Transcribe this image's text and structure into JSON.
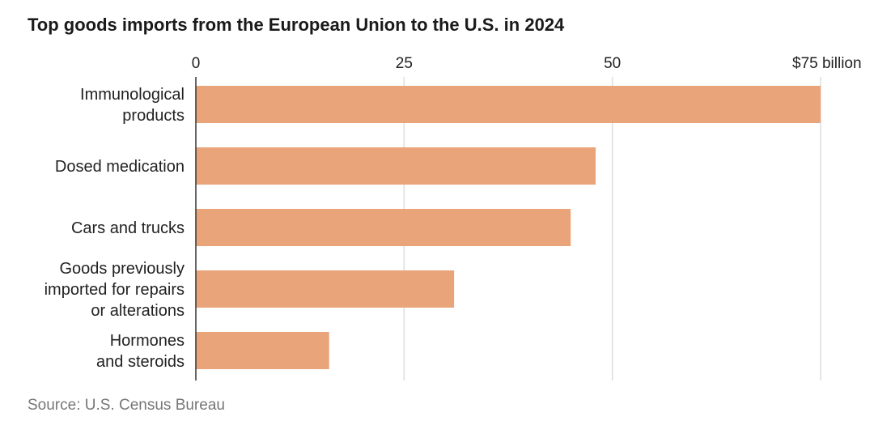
{
  "title": "Top goods imports from the European Union to the U.S. in 2024",
  "source": "Source: U.S. Census Bureau",
  "chart_data": {
    "type": "bar",
    "orientation": "horizontal",
    "title": "Top goods imports from the European Union to the U.S. in 2024",
    "categories": [
      [
        "Immunological",
        "products"
      ],
      [
        "Dosed medication"
      ],
      [
        "Cars and trucks"
      ],
      [
        "Goods previously",
        "imported for repairs",
        "or alterations"
      ],
      [
        "Hormones",
        "and steroids"
      ]
    ],
    "values": [
      75,
      48,
      45,
      31,
      16
    ],
    "unit": "billion",
    "xlim": [
      0,
      75
    ],
    "ticks": [
      0,
      25,
      50,
      75
    ],
    "tick_labels": [
      "0",
      "25",
      "50",
      "$75 billion"
    ],
    "grid": true,
    "bar_color": "#eaa479",
    "grid_color": "#dddddd",
    "axis_color": "#333333"
  }
}
